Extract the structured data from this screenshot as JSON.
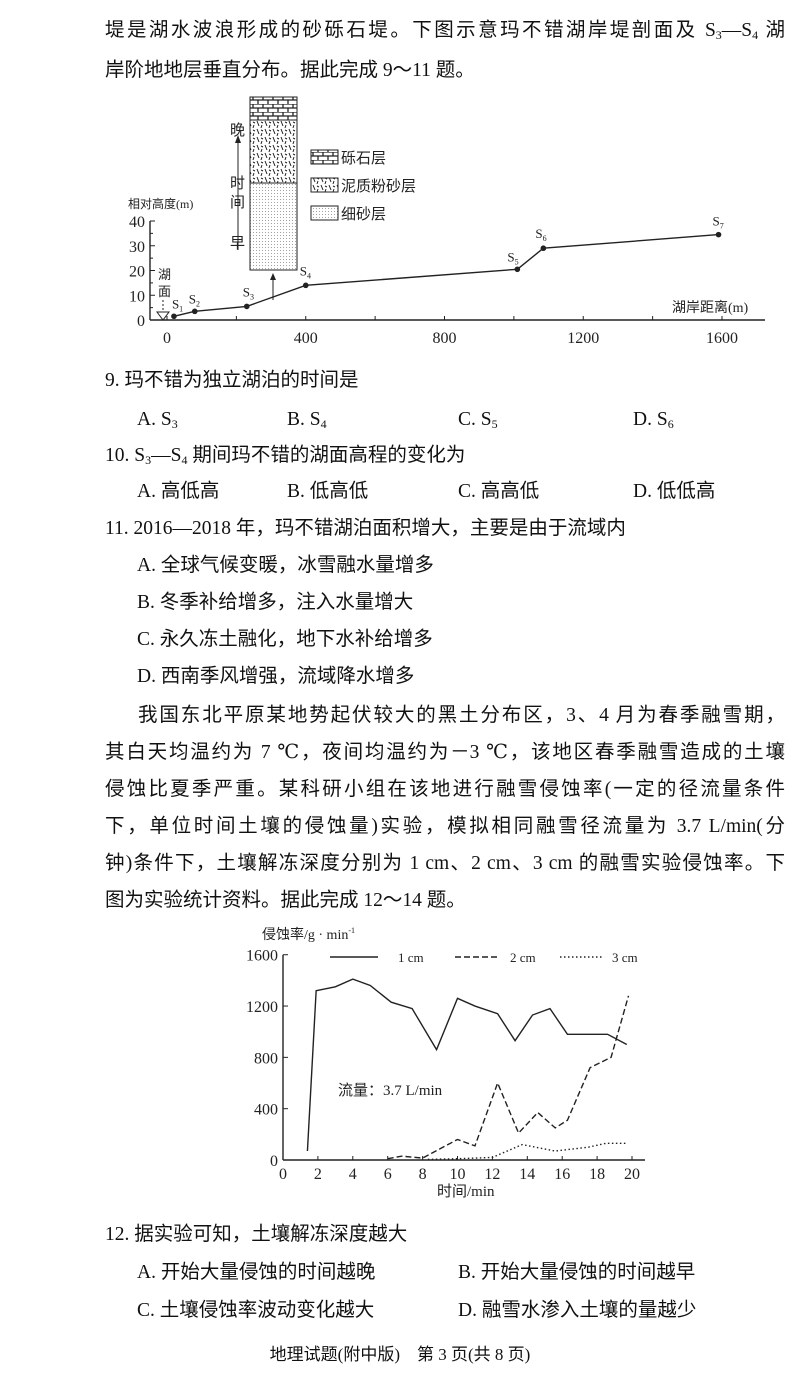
{
  "intro1": {
    "line1_a": "堤是湖水波浪形成的砂砾石堤。下图示意玛不错湖岸堤剖面及 S",
    "line1_sub1": "3",
    "line1_b": "—S",
    "line1_sub2": "4",
    "line1_c": " 湖",
    "line2": "岸阶地地层垂直分布。据此完成 9～11 题。"
  },
  "chart_data": [
    {
      "type": "line",
      "ylabel": "相对高度(m)",
      "xlabel": "湖岸距离(m)",
      "xlim": [
        0,
        1600
      ],
      "ylim": [
        0,
        40
      ],
      "xticks": [
        "0",
        "400",
        "800",
        "1200",
        "1600"
      ],
      "yticks": [
        "0",
        "10",
        "20",
        "30",
        "40"
      ],
      "lake_label": "湖面",
      "points": [
        {
          "name": "S",
          "sub": "1",
          "x": 20,
          "y": 1.5
        },
        {
          "name": "S",
          "sub": "2",
          "x": 80,
          "y": 3.5
        },
        {
          "name": "S",
          "sub": "3",
          "x": 230,
          "y": 5.5
        },
        {
          "name": "S",
          "sub": "4",
          "x": 400,
          "y": 14
        },
        {
          "name": "S",
          "sub": "5",
          "x": 1010,
          "y": 20.5
        },
        {
          "name": "S",
          "sub": "6",
          "x": 1085,
          "y": 29
        },
        {
          "name": "S",
          "sub": "7",
          "x": 1590,
          "y": 34.5
        }
      ],
      "column": {
        "time_label_late": "晚",
        "time_label_1": "时",
        "time_label_2": "间",
        "time_label_early": "早",
        "layers_top_to_bottom": [
          "砾石层",
          "泥质粉砂层",
          "细砂层"
        ]
      },
      "legend": [
        {
          "pattern": "brick",
          "label": "砾石层"
        },
        {
          "pattern": "dashes",
          "label": "泥质粉砂层"
        },
        {
          "pattern": "dots",
          "label": "细砂层"
        }
      ]
    },
    {
      "type": "line",
      "ylabel": "侵蚀率/g · min",
      "ylabel_sup": "-1",
      "xlabel": "时间/min",
      "xlim": [
        0,
        20
      ],
      "ylim": [
        0,
        1600
      ],
      "xticks": [
        "0",
        "2",
        "4",
        "6",
        "8",
        "10",
        "12",
        "14",
        "16",
        "18",
        "20"
      ],
      "yticks": [
        "0",
        "400",
        "800",
        "1200",
        "1600"
      ],
      "annotation": "流量：3.7 L/min",
      "legend_placement": "top",
      "series": [
        {
          "name": "1 cm",
          "style": "solid",
          "points": [
            [
              1.4,
              70
            ],
            [
              1.9,
              1320
            ],
            [
              3,
              1350
            ],
            [
              4,
              1410
            ],
            [
              5,
              1360
            ],
            [
              6.2,
              1230
            ],
            [
              7.4,
              1180
            ],
            [
              8.8,
              860
            ],
            [
              10,
              1260
            ],
            [
              11,
              1200
            ],
            [
              12.3,
              1140
            ],
            [
              13.3,
              930
            ],
            [
              14.3,
              1130
            ],
            [
              15.3,
              1180
            ],
            [
              16.3,
              980
            ],
            [
              17.5,
              980
            ],
            [
              18.6,
              980
            ],
            [
              19.7,
              900
            ]
          ]
        },
        {
          "name": "2 cm",
          "style": "dashed",
          "points": [
            [
              6,
              10
            ],
            [
              6.8,
              30
            ],
            [
              8,
              15
            ],
            [
              10,
              160
            ],
            [
              11,
              110
            ],
            [
              12.3,
              600
            ],
            [
              13.5,
              210
            ],
            [
              14.6,
              370
            ],
            [
              15.6,
              250
            ],
            [
              16.3,
              310
            ],
            [
              17.6,
              720
            ],
            [
              18.8,
              800
            ],
            [
              19.8,
              1280
            ]
          ]
        },
        {
          "name": "3 cm",
          "style": "dotted",
          "points": [
            [
              8.3,
              5
            ],
            [
              10,
              10
            ],
            [
              12,
              20
            ],
            [
              13.7,
              120
            ],
            [
              15.6,
              70
            ],
            [
              17.5,
              100
            ],
            [
              18.5,
              130
            ],
            [
              19.7,
              130
            ]
          ]
        }
      ]
    }
  ],
  "q9": {
    "stem": "9. 玛不错为独立湖泊的时间是",
    "options": [
      {
        "letter": "A. S",
        "sub": "3"
      },
      {
        "letter": "B. S",
        "sub": "4"
      },
      {
        "letter": "C. S",
        "sub": "5"
      },
      {
        "letter": "D. S",
        "sub": "6"
      }
    ]
  },
  "q10": {
    "stem_a": "10. S",
    "sub1": "3",
    "stem_b": "—S",
    "sub2": "4",
    "stem_c": " 期间玛不错的湖面高程的变化为",
    "options": [
      "A. 高低高",
      "B. 低高低",
      "C. 高高低",
      "D. 低低高"
    ]
  },
  "q11": {
    "stem": "11. 2016—2018 年，玛不错湖泊面积增大，主要是由于流域内",
    "options": [
      "A. 全球气候变暖，冰雪融水量增多",
      "B. 冬季补给增多，注入水量增大",
      "C. 永久冻土融化，地下水补给增多",
      "D. 西南季风增强，流域降水增多"
    ]
  },
  "intro2": [
    "我国东北平原某地势起伏较大的黑土分布区，3、4 月为春季融雪期，",
    "其白天均温约为 7 ℃，夜间均温约为－3 ℃，该地区春季融雪造成的土壤",
    "侵蚀比夏季严重。某科研小组在该地进行融雪侵蚀率(一定的径流量条件",
    "下，单位时间土壤的侵蚀量)实验，模拟相同融雪径流量为 3.7 L/min(分",
    "钟)条件下，土壤解冻深度分别为 1 cm、2 cm、3 cm 的融雪实验侵蚀率。下",
    "图为实验统计资料。据此完成 12～14 题。"
  ],
  "q12": {
    "stem": "12. 据实验可知，土壤解冻深度越大",
    "options": [
      "A. 开始大量侵蚀的时间越晚",
      "B. 开始大量侵蚀的时间越早",
      "C. 土壤侵蚀率波动变化越大",
      "D. 融雪水渗入土壤的量越少"
    ]
  },
  "footer": "地理试题(附中版)　第 3 页(共 8 页)"
}
